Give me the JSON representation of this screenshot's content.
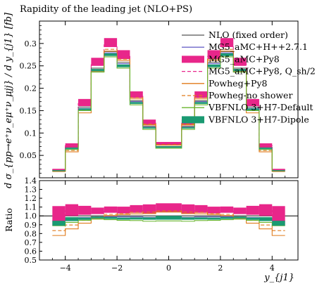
{
  "chart_data": {
    "type": "line",
    "title": "Rapidity of the leading jet (NLO+PS)",
    "ylabel": "d σ_{pp→e⁺ν_eμ⁺ν_μjj} / d y_{j1} [fb]",
    "xlabel": "y_{j1}",
    "ratio_label": "Ratio",
    "xlim": [
      -5,
      5
    ],
    "ylim": [
      0,
      0.35
    ],
    "ratio_ylim": [
      0.5,
      1.4
    ],
    "x_ticks": [
      -4,
      -2,
      0,
      2,
      4
    ],
    "y_ticks": [
      0.05,
      0.1,
      0.15,
      0.2,
      0.25,
      0.3
    ],
    "ratio_ticks": [
      0.5,
      0.6,
      0.7,
      0.8,
      0.9,
      1.0,
      1.1,
      1.2,
      1.3,
      1.4
    ],
    "bin_edges": [
      -4.5,
      -4.0,
      -3.5,
      -3.0,
      -2.5,
      -2.0,
      -1.5,
      -1.0,
      -0.5,
      0.5,
      1.0,
      1.5,
      2.0,
      2.5,
      3.0,
      3.5,
      4.0,
      4.5
    ],
    "legend_position": "top-right",
    "series": [
      {
        "name": "NLO (fixed order)",
        "color": "#555555",
        "style": "solid",
        "values": [
          0.018,
          0.068,
          0.158,
          0.245,
          0.282,
          0.258,
          0.172,
          0.115,
          0.07,
          0.115,
          0.172,
          0.258,
          0.282,
          0.245,
          0.158,
          0.068,
          0.018
        ]
      },
      {
        "name": "MG5_aMC+H++2.7.1",
        "color": "#6d64c8",
        "style": "solid",
        "values": [
          0.017,
          0.066,
          0.155,
          0.242,
          0.279,
          0.255,
          0.17,
          0.113,
          0.069,
          0.113,
          0.17,
          0.255,
          0.279,
          0.242,
          0.155,
          0.066,
          0.017
        ]
      },
      {
        "name": "MG5_aMC+Py8",
        "color": "#e8268a",
        "style": "band",
        "band_lo": [
          0.016,
          0.068,
          0.16,
          0.25,
          0.292,
          0.265,
          0.178,
          0.118,
          0.073,
          0.118,
          0.178,
          0.265,
          0.292,
          0.25,
          0.16,
          0.068,
          0.016
        ],
        "band_hi": [
          0.02,
          0.077,
          0.176,
          0.268,
          0.312,
          0.285,
          0.193,
          0.13,
          0.08,
          0.13,
          0.193,
          0.285,
          0.312,
          0.268,
          0.176,
          0.077,
          0.02
        ]
      },
      {
        "name": "MG5_aMC+Py8, Q_sh/2",
        "color": "#e8268a",
        "style": "dashed",
        "values": [
          0.018,
          0.072,
          0.166,
          0.256,
          0.297,
          0.271,
          0.182,
          0.122,
          0.075,
          0.122,
          0.182,
          0.271,
          0.297,
          0.256,
          0.166,
          0.072,
          0.018
        ]
      },
      {
        "name": "Powheg+Py8",
        "color": "#e07a1a",
        "style": "solid",
        "values": [
          0.014,
          0.058,
          0.145,
          0.237,
          0.283,
          0.262,
          0.176,
          0.118,
          0.073,
          0.118,
          0.176,
          0.262,
          0.283,
          0.237,
          0.145,
          0.058,
          0.014
        ]
      },
      {
        "name": "Powheg-no shower",
        "color": "#e07a1a",
        "style": "dashed",
        "values": [
          0.015,
          0.061,
          0.15,
          0.242,
          0.287,
          0.265,
          0.179,
          0.12,
          0.074,
          0.12,
          0.179,
          0.265,
          0.287,
          0.242,
          0.15,
          0.061,
          0.015
        ]
      },
      {
        "name": "VBFNLO 3+H7-Default",
        "color": "#6ab52e",
        "style": "solid",
        "values": [
          0.016,
          0.063,
          0.15,
          0.236,
          0.27,
          0.245,
          0.163,
          0.108,
          0.066,
          0.108,
          0.163,
          0.245,
          0.27,
          0.236,
          0.15,
          0.063,
          0.016
        ]
      },
      {
        "name": "VBFNLO 3+H7-Dipole",
        "color": "#1a9a72",
        "style": "band",
        "band_lo": [
          0.016,
          0.064,
          0.151,
          0.238,
          0.272,
          0.247,
          0.165,
          0.11,
          0.067,
          0.11,
          0.165,
          0.247,
          0.272,
          0.238,
          0.151,
          0.064,
          0.016
        ],
        "band_hi": [
          0.017,
          0.067,
          0.155,
          0.243,
          0.278,
          0.253,
          0.169,
          0.113,
          0.07,
          0.113,
          0.169,
          0.253,
          0.278,
          0.243,
          0.155,
          0.067,
          0.017
        ]
      }
    ]
  }
}
